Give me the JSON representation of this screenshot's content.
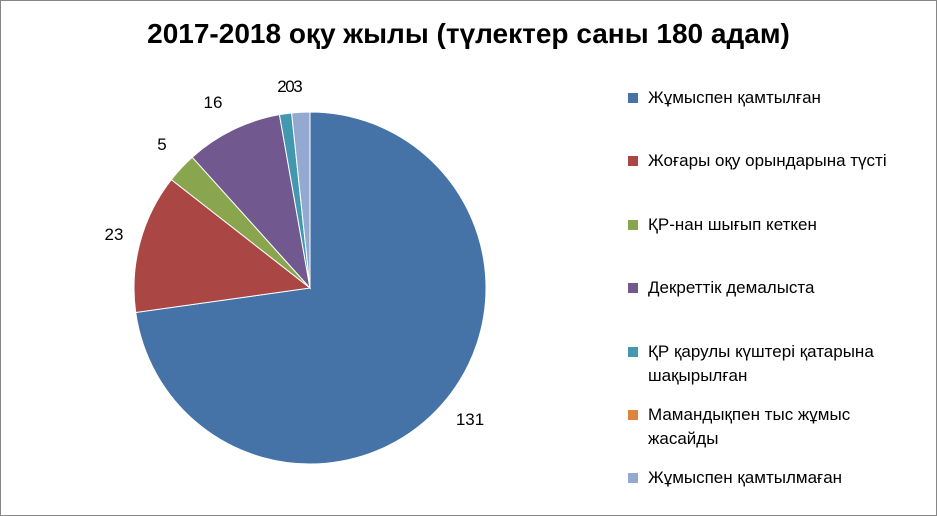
{
  "chart_data": {
    "type": "pie",
    "title": "2017-2018 оқу жылы (түлектер саны 180 адам)",
    "categories": [
      "Жұмыспен қамтылған",
      "Жоғары оқу орындарына түсті",
      "ҚР-нан шығып кеткен",
      "Декреттік демалыста",
      "ҚР қарулы күштері қатарына шақырылған",
      "Мамандықпен тыс жұмыс жасайды",
      "Жұмыспен қамтылмаған"
    ],
    "values": [
      131,
      23,
      5,
      16,
      2,
      0,
      3
    ],
    "data_labels": [
      "131",
      "23",
      "5",
      "16",
      "2",
      "0",
      "3"
    ],
    "colors": [
      "#4572A7",
      "#AA4643",
      "#89A54E",
      "#71588F",
      "#4198AF",
      "#DB843D",
      "#93A9CF"
    ],
    "legend_position": "right"
  }
}
